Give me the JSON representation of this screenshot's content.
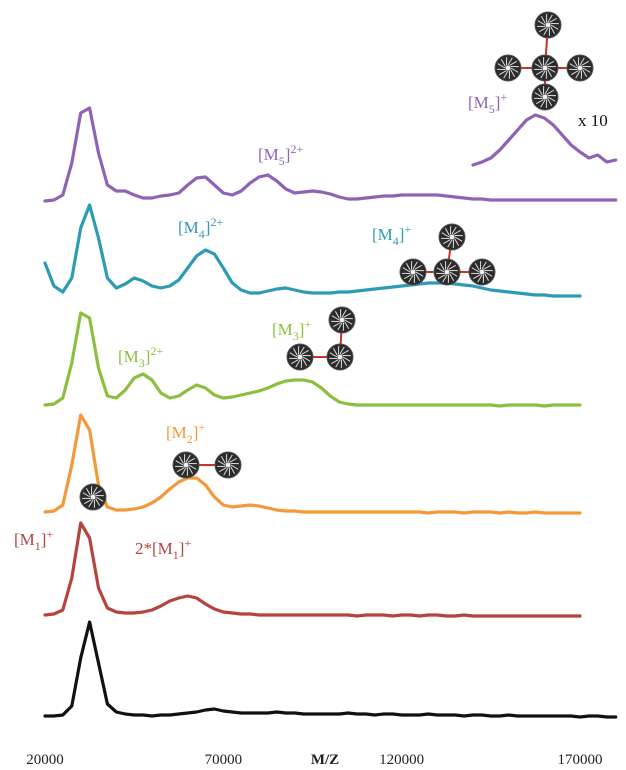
{
  "chart_data": {
    "type": "line",
    "x_label": "M/Z",
    "xlim": [
      20000,
      181000
    ],
    "xticks": [
      20000,
      70000,
      120000,
      170000
    ],
    "x": [
      20000,
      22500,
      25000,
      27500,
      30000,
      32500,
      35000,
      37500,
      40000,
      42500,
      45000,
      47500,
      50000,
      52500,
      55000,
      57500,
      60000,
      62500,
      65000,
      67500,
      70000,
      72500,
      75000,
      77500,
      80000,
      82500,
      85000,
      87500,
      90000,
      92500,
      95000,
      97500,
      100000,
      102500,
      105000,
      107500,
      110000,
      112500,
      115000,
      117500,
      120000,
      122500,
      125000,
      127500,
      130000,
      132500,
      135000,
      137500,
      140000,
      142500,
      145000,
      147500,
      150000,
      152500,
      155000,
      157500,
      160000,
      162500,
      165000,
      167500,
      170000,
      172500,
      175000,
      177500,
      180000
    ],
    "series": [
      {
        "color": "#111111",
        "values": [
          2,
          2,
          3,
          12,
          60,
          96,
          55,
          14,
          6,
          4,
          3,
          3,
          2,
          3,
          3,
          4,
          5,
          6,
          8,
          9,
          7,
          6,
          5,
          5,
          5,
          5,
          6,
          5,
          5,
          4,
          4,
          4,
          4,
          4,
          5,
          4,
          4,
          3,
          4,
          4,
          3,
          3,
          3,
          4,
          3,
          3,
          3,
          2,
          3,
          3,
          2,
          2,
          3,
          2,
          2,
          2,
          2,
          2,
          2,
          2,
          1,
          2,
          2,
          1,
          1
        ]
      },
      {
        "color": "#b5443f",
        "values": [
          3,
          4,
          8,
          40,
          95,
          80,
          30,
          10,
          6,
          5,
          5,
          6,
          8,
          12,
          17,
          20,
          22,
          20,
          14,
          9,
          6,
          5,
          4,
          4,
          3,
          3,
          3,
          3,
          3,
          3,
          3,
          3,
          3,
          3,
          3,
          2,
          3,
          3,
          3,
          2,
          3,
          3,
          2,
          3,
          3,
          2,
          2,
          3,
          2,
          2,
          2,
          2,
          2,
          2,
          2,
          2,
          2,
          2,
          2,
          2,
          2,
          null,
          null,
          null,
          null
        ]
      },
      {
        "color": "#f4993a",
        "values": [
          3,
          4,
          10,
          50,
          100,
          85,
          30,
          8,
          5,
          5,
          6,
          8,
          12,
          18,
          26,
          33,
          37,
          37,
          30,
          18,
          10,
          8,
          9,
          10,
          9,
          7,
          5,
          4,
          4,
          3,
          3,
          3,
          3,
          3,
          3,
          3,
          3,
          3,
          3,
          3,
          3,
          3,
          3,
          2,
          3,
          3,
          3,
          2,
          3,
          3,
          3,
          2,
          3,
          2,
          2,
          3,
          2,
          2,
          2,
          2,
          2,
          null,
          null,
          null,
          null
        ]
      },
      {
        "color": "#8cbf3f",
        "values": [
          3,
          4,
          10,
          45,
          95,
          90,
          40,
          12,
          10,
          18,
          30,
          34,
          28,
          15,
          10,
          12,
          18,
          23,
          20,
          13,
          10,
          11,
          13,
          15,
          17,
          20,
          24,
          27,
          28,
          28,
          26,
          20,
          12,
          6,
          4,
          3,
          3,
          3,
          3,
          3,
          3,
          3,
          3,
          3,
          3,
          3,
          3,
          3,
          3,
          3,
          3,
          2,
          3,
          3,
          3,
          3,
          2,
          3,
          3,
          3,
          3,
          null,
          null,
          null,
          null
        ]
      },
      {
        "color": "#2e9bb5",
        "values": [
          35,
          12,
          6,
          20,
          70,
          93,
          60,
          20,
          10,
          14,
          20,
          17,
          12,
          10,
          12,
          18,
          30,
          42,
          48,
          44,
          30,
          15,
          8,
          5,
          5,
          7,
          9,
          10,
          8,
          6,
          5,
          5,
          5,
          6,
          6,
          7,
          8,
          9,
          10,
          11,
          12,
          13,
          14,
          15,
          15,
          15,
          14,
          13,
          12,
          10,
          8,
          7,
          6,
          5,
          4,
          3,
          3,
          2,
          2,
          2,
          2,
          null,
          null,
          null,
          null
        ]
      },
      {
        "color": "#8e63b6",
        "values": [
          2,
          3,
          8,
          40,
          90,
          95,
          50,
          18,
          12,
          12,
          8,
          5,
          5,
          7,
          8,
          10,
          18,
          25,
          26,
          18,
          10,
          8,
          12,
          20,
          26,
          28,
          22,
          14,
          10,
          11,
          12,
          11,
          9,
          6,
          4,
          4,
          5,
          6,
          7,
          7,
          8,
          8,
          8,
          8,
          8,
          7,
          6,
          5,
          4,
          4,
          3,
          3,
          3,
          3,
          3,
          3,
          3,
          3,
          3,
          3,
          3,
          3,
          3,
          3,
          3
        ]
      }
    ],
    "inset": {
      "color": "#8e63b6",
      "x": [
        140000,
        142500,
        145000,
        147500,
        150000,
        152500,
        155000,
        157500,
        160000,
        162500,
        165000,
        167500,
        170000,
        172500,
        175000,
        177500,
        180000
      ],
      "values": [
        5,
        8,
        12,
        20,
        30,
        40,
        50,
        55,
        52,
        45,
        35,
        25,
        18,
        12,
        15,
        8,
        10
      ]
    },
    "annotations": [
      {
        "color": "#8e63b6",
        "pre": "[M",
        "sub": "5",
        "post": "]",
        "sup": "2+"
      },
      {
        "color": "#8e63b6",
        "pre": "[M",
        "sub": "5",
        "post": "]",
        "sup": "+"
      },
      {
        "color": "#111111",
        "text": "x 10"
      },
      {
        "color": "#2e9bb5",
        "pre": "[M",
        "sub": "4",
        "post": "]",
        "sup": "2+"
      },
      {
        "color": "#2e9bb5",
        "pre": "[M",
        "sub": "4",
        "post": "]",
        "sup": "+"
      },
      {
        "color": "#8cbf3f",
        "pre": "[M",
        "sub": "3",
        "post": "]",
        "sup": "+"
      },
      {
        "color": "#8cbf3f",
        "pre": "[M",
        "sub": "3",
        "post": "]",
        "sup": "2+"
      },
      {
        "color": "#f4993a",
        "pre": "[M",
        "sub": "2",
        "post": "]",
        "sup": "+"
      },
      {
        "color": "#b5443f",
        "pre": "[M",
        "sub": "1",
        "post": "]",
        "sup": "+"
      },
      {
        "color": "#b5443f",
        "pre": "2*[M",
        "sub": "1",
        "post": "]",
        "sup": "+"
      }
    ]
  }
}
